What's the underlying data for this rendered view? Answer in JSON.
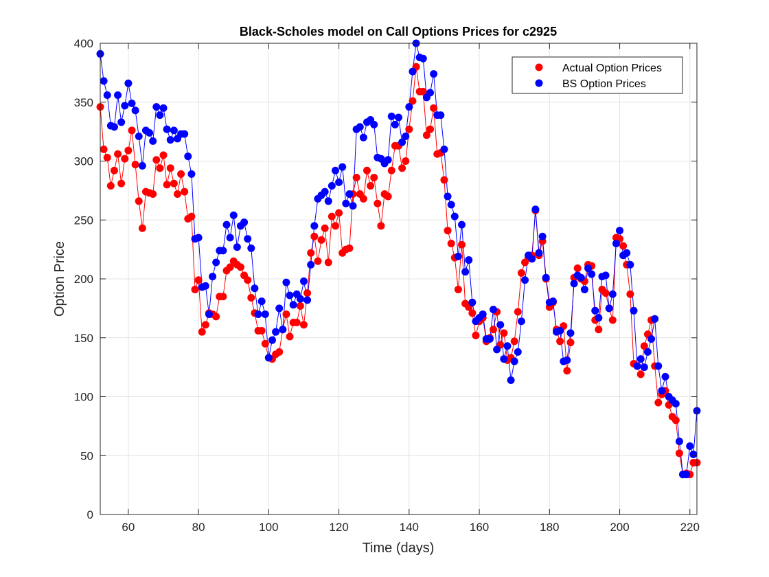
{
  "chart_data": {
    "type": "line",
    "title": "Black-Scholes model on Call Options Prices for c2925",
    "xlabel": "Time (days)",
    "ylabel": "Option Price",
    "xlim": [
      52,
      222
    ],
    "ylim": [
      0,
      400
    ],
    "xticks": [
      "60",
      "80",
      "100",
      "120",
      "140",
      "160",
      "180",
      "200",
      "220"
    ],
    "yticks": [
      "0",
      "50",
      "100",
      "150",
      "200",
      "250",
      "300",
      "350",
      "400"
    ],
    "grid": true,
    "legend_position": "top-right",
    "colors": {
      "actual": "#ff0000",
      "bs": "#0000ff"
    },
    "x_start": 52,
    "x_step": 1,
    "series": [
      {
        "name": "Actual Option Prices",
        "key": "actual",
        "values": [
          346,
          310,
          303,
          279,
          292,
          306,
          281,
          302,
          309,
          326,
          297,
          266,
          243,
          274,
          273,
          272,
          301,
          294,
          305,
          280,
          294,
          281,
          272,
          289,
          274,
          251,
          253,
          191,
          199,
          155,
          161,
          171,
          170,
          168,
          185,
          185,
          207,
          210,
          215,
          212,
          210,
          203,
          199,
          184,
          171,
          156,
          156,
          145,
          133,
          132,
          136,
          138,
          157,
          170,
          151,
          163,
          163,
          177,
          161,
          188,
          222,
          236,
          215,
          233,
          243,
          214,
          253,
          245,
          256,
          222,
          225,
          226,
          272,
          286,
          272,
          268,
          292,
          279,
          286,
          264,
          245,
          272,
          270,
          292,
          313,
          313,
          294,
          300,
          327,
          351,
          380,
          359,
          359,
          322,
          327,
          345,
          306,
          307,
          284,
          241,
          230,
          218,
          191,
          229,
          179,
          176,
          171,
          152,
          164,
          167,
          147,
          150,
          157,
          172,
          144,
          154,
          131,
          133,
          147,
          172,
          205,
          214,
          218,
          220,
          258,
          220,
          232,
          200,
          176,
          180,
          157,
          147,
          160,
          122,
          146,
          201,
          209,
          200,
          198,
          212,
          211,
          165,
          157,
          191,
          188,
          175,
          165,
          235,
          234,
          228,
          212,
          187,
          128,
          126,
          119,
          143,
          153,
          165,
          126,
          95,
          102,
          105,
          93,
          83,
          80,
          52,
          34,
          35,
          34,
          44,
          44
        ]
      },
      {
        "name": "BS Option Prices",
        "key": "bs",
        "values": [
          391,
          368,
          356,
          330,
          329,
          356,
          333,
          347,
          366,
          349,
          343,
          321,
          296,
          326,
          324,
          317,
          346,
          339,
          345,
          327,
          318,
          326,
          319,
          323,
          323,
          304,
          289,
          234,
          235,
          193,
          194,
          170,
          202,
          214,
          224,
          224,
          246,
          235,
          254,
          227,
          245,
          248,
          234,
          226,
          192,
          170,
          181,
          170,
          133,
          148,
          155,
          175,
          157,
          197,
          186,
          178,
          187,
          183,
          198,
          182,
          212,
          245,
          268,
          271,
          274,
          266,
          279,
          292,
          282,
          295,
          264,
          272,
          262,
          327,
          329,
          320,
          333,
          335,
          331,
          303,
          302,
          298,
          301,
          338,
          331,
          337,
          316,
          321,
          346,
          376,
          400,
          388,
          387,
          354,
          358,
          374,
          339,
          339,
          310,
          270,
          263,
          253,
          219,
          246,
          206,
          216,
          180,
          164,
          167,
          170,
          149,
          149,
          174,
          140,
          161,
          132,
          143,
          114,
          130,
          138,
          164,
          199,
          220,
          217,
          259,
          222,
          236,
          201,
          180,
          181,
          155,
          156,
          130,
          131,
          154,
          196,
          203,
          201,
          191,
          209,
          204,
          173,
          167,
          202,
          203,
          175,
          187,
          230,
          241,
          220,
          222,
          212,
          173,
          126,
          132,
          125,
          138,
          149,
          166,
          126,
          105,
          117,
          100,
          97,
          94,
          62,
          34,
          34,
          58,
          51,
          88
        ]
      }
    ]
  }
}
